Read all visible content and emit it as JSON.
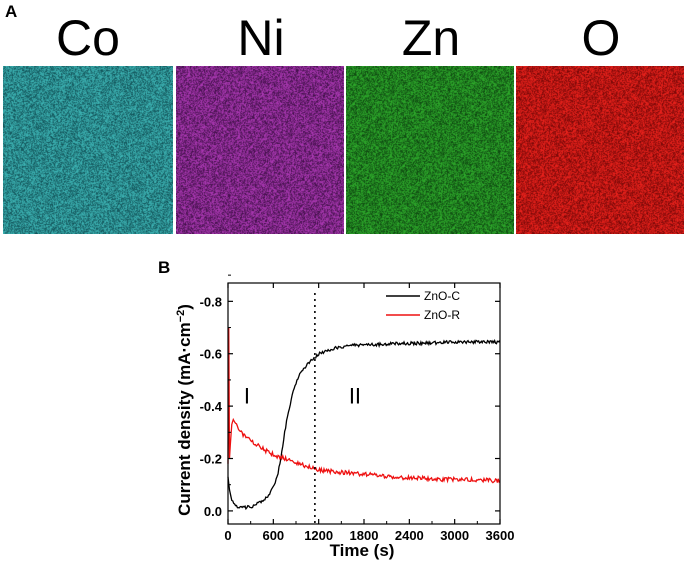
{
  "figure": {
    "panel_a_label": "A",
    "panel_b_label": "B"
  },
  "maps": [
    {
      "element": "Co",
      "color": "#3fb9b9",
      "base": "#0f4c52"
    },
    {
      "element": "Ni",
      "color": "#b03ab8",
      "base": "#3a0d42"
    },
    {
      "element": "Zn",
      "color": "#2fae2c",
      "base": "#0c400f"
    },
    {
      "element": "O",
      "color": "#f0231d",
      "base": "#6e0606"
    }
  ],
  "chart_data": {
    "type": "line",
    "title": "",
    "xlabel": "Time (s)",
    "ylabel": "Current density (mA·cm",
    "ylabel_superscript": "−2",
    "ylabel_close": ")",
    "xlim": [
      0,
      3600
    ],
    "ylim": [
      0.05,
      -0.87
    ],
    "x_ticks": [
      0,
      600,
      1200,
      1800,
      2400,
      3000,
      3600
    ],
    "x_tick_labels": [
      "0",
      "600",
      "1200",
      "1800",
      "2400",
      "3000",
      "3600"
    ],
    "y_ticks": [
      0.0,
      -0.2,
      -0.4,
      -0.6,
      -0.8
    ],
    "y_tick_labels": [
      "0.0",
      "-0.2",
      "-0.4",
      "-0.6",
      "-0.8"
    ],
    "region_divider_x": 1150,
    "region_labels": [
      {
        "text": "I",
        "x": 250,
        "y": -0.44
      },
      {
        "text": "II",
        "x": 1680,
        "y": -0.44
      }
    ],
    "legend_position": "top-right",
    "series": [
      {
        "name": "ZnO-C",
        "color": "#000000",
        "x": [
          0,
          20,
          50,
          100,
          150,
          200,
          300,
          400,
          500,
          550,
          600,
          650,
          700,
          750,
          800,
          850,
          900,
          950,
          1000,
          1050,
          1100,
          1150,
          1200,
          1300,
          1400,
          1500,
          1600,
          1800,
          2000,
          2200,
          2400,
          2600,
          2800,
          3000,
          3200,
          3400,
          3600
        ],
        "y": [
          -0.13,
          -0.08,
          -0.04,
          -0.02,
          -0.015,
          -0.012,
          -0.015,
          -0.03,
          -0.05,
          -0.065,
          -0.09,
          -0.13,
          -0.2,
          -0.3,
          -0.38,
          -0.44,
          -0.49,
          -0.52,
          -0.54,
          -0.56,
          -0.575,
          -0.585,
          -0.6,
          -0.61,
          -0.62,
          -0.625,
          -0.63,
          -0.635,
          -0.635,
          -0.638,
          -0.64,
          -0.64,
          -0.642,
          -0.645,
          -0.645,
          -0.647,
          -0.643
        ]
      },
      {
        "name": "ZnO-R",
        "color": "#ee1111",
        "x": [
          0,
          10,
          15,
          20,
          30,
          50,
          70,
          100,
          150,
          200,
          300,
          400,
          500,
          600,
          700,
          800,
          900,
          1000,
          1100,
          1200,
          1400,
          1600,
          1800,
          2000,
          2200,
          2400,
          2600,
          2800,
          3000,
          3200,
          3400,
          3600
        ],
        "y": [
          -0.18,
          -0.7,
          -0.45,
          -0.2,
          -0.25,
          -0.33,
          -0.35,
          -0.33,
          -0.31,
          -0.29,
          -0.27,
          -0.25,
          -0.23,
          -0.215,
          -0.205,
          -0.195,
          -0.185,
          -0.175,
          -0.165,
          -0.155,
          -0.15,
          -0.145,
          -0.14,
          -0.135,
          -0.13,
          -0.125,
          -0.125,
          -0.12,
          -0.12,
          -0.118,
          -0.117,
          -0.115
        ]
      }
    ]
  }
}
